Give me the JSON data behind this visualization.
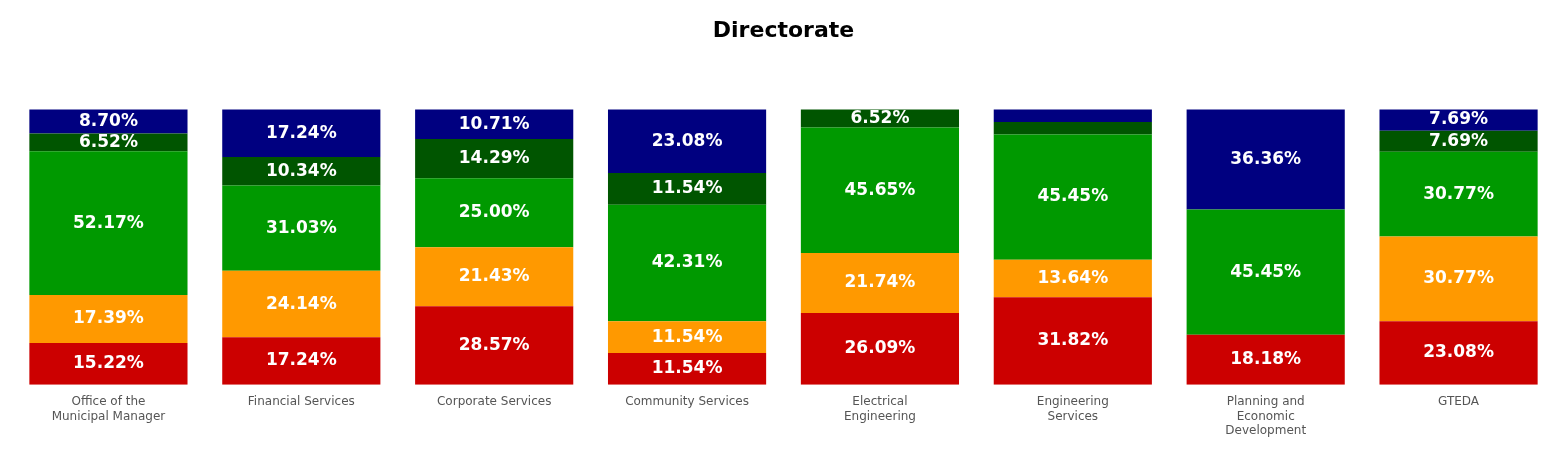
{
  "chart_data": {
    "type": "bar",
    "title": "Directorate",
    "stacked": true,
    "legend": false,
    "grid": false,
    "tick_labels": "x",
    "categories": [
      "Office of the Municipal Manager",
      "Financial Services",
      "Corporate Services",
      "Community Services",
      "Electrical Engineering",
      "Engineering Services",
      "Planning and Economic Development",
      "GTEDA"
    ],
    "series": [
      {
        "color": "#cc0000",
        "values": [
          15.22,
          17.24,
          28.57,
          11.54,
          26.09,
          31.82,
          18.18,
          23.08
        ],
        "value_labels": [
          "15.22%",
          "17.24%",
          "28.57%",
          "11.54%",
          "26.09%",
          "31.82%",
          "18.18%",
          "23.08%"
        ]
      },
      {
        "color": "#ff9900",
        "values": [
          17.39,
          24.14,
          21.43,
          11.54,
          21.74,
          13.64,
          null,
          30.77
        ],
        "value_labels": [
          "17.39%",
          "24.14%",
          "21.43%",
          "11.54%",
          "21.74%",
          "13.64%",
          null,
          "30.77%"
        ]
      },
      {
        "color": "#009900",
        "values": [
          52.17,
          31.03,
          25.0,
          42.31,
          45.65,
          45.45,
          45.45,
          30.77
        ],
        "value_labels": [
          "52.17%",
          "31.03%",
          "25.00%",
          "42.31%",
          "45.65%",
          "45.45%",
          "45.45%",
          "30.77%"
        ]
      },
      {
        "color": "#005500",
        "values": [
          6.52,
          10.34,
          14.29,
          11.54,
          6.52,
          4.55,
          null,
          7.69
        ],
        "value_labels": [
          "6.52%",
          "10.34%",
          "14.29%",
          "11.54%",
          "6.52%",
          null,
          null,
          "7.69%"
        ]
      },
      {
        "color": "#000080",
        "values": [
          8.7,
          17.24,
          10.71,
          23.08,
          null,
          4.55,
          36.36,
          7.69
        ],
        "value_labels": [
          "8.70%",
          "17.24%",
          "10.71%",
          "23.08%",
          null,
          null,
          "36.36%",
          "7.69%"
        ]
      }
    ]
  }
}
